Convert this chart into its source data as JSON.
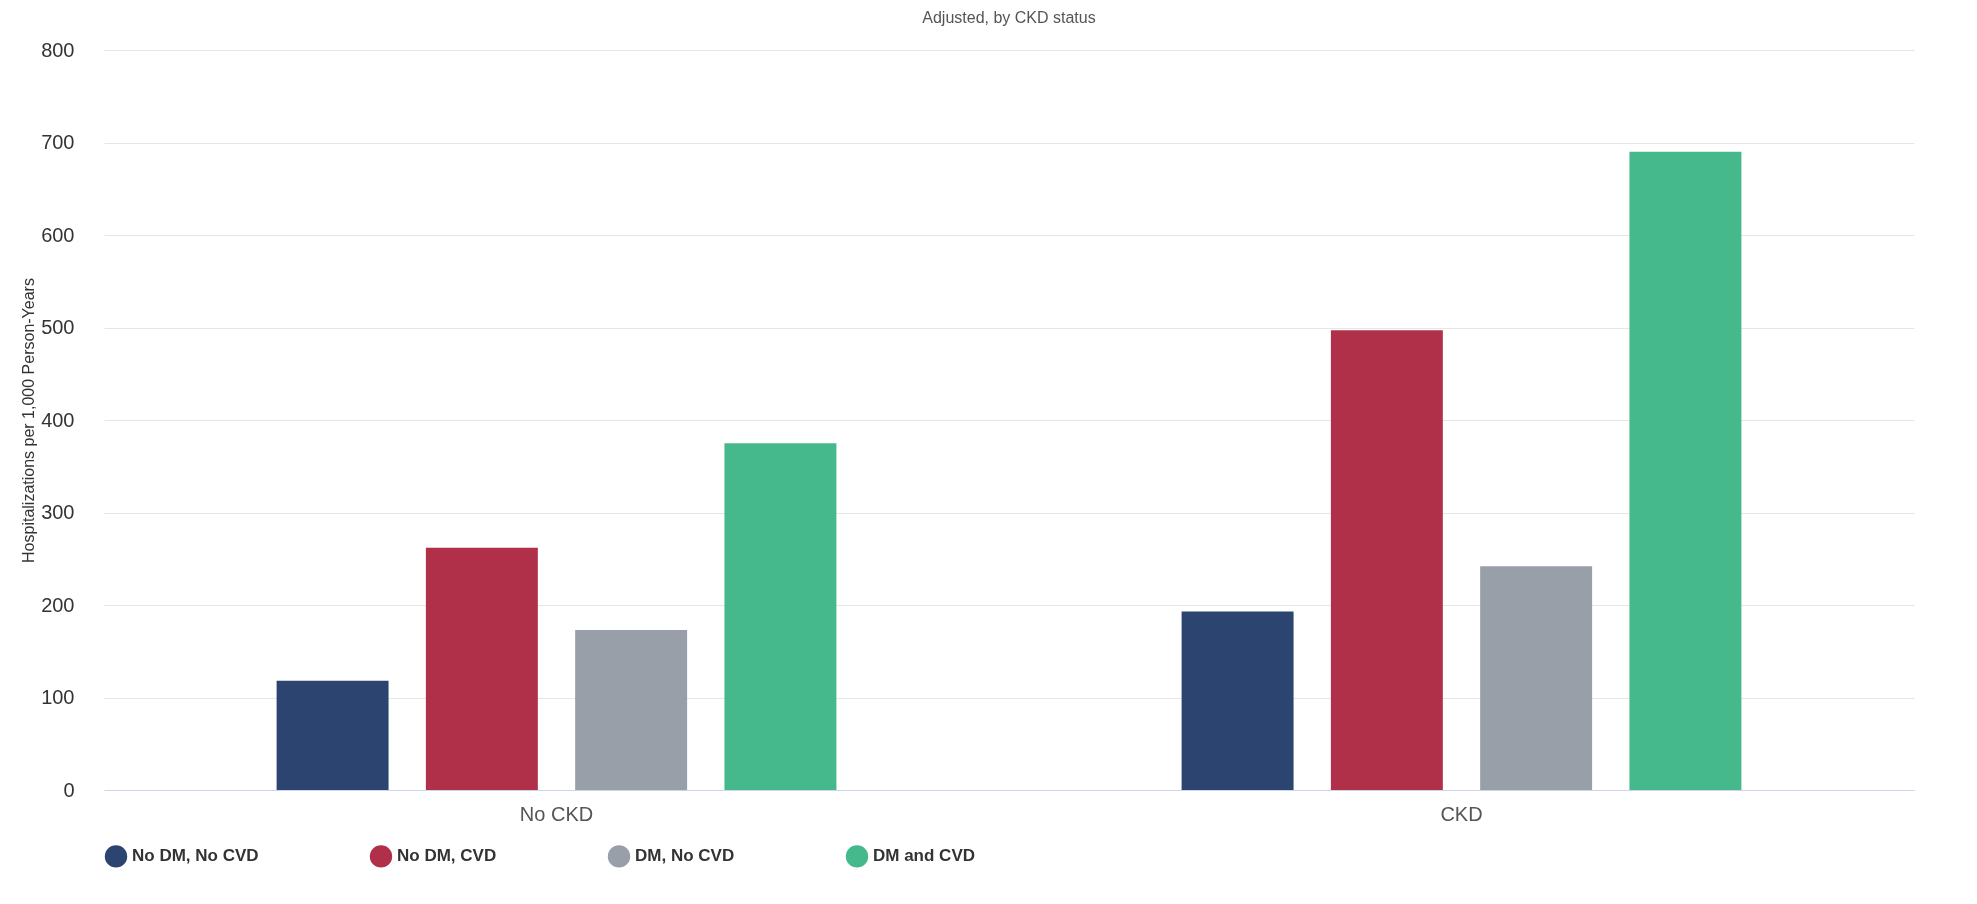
{
  "chart_data": {
    "type": "bar",
    "title": "Adjusted, by CKD status",
    "ylabel": "Hospitalizations per 1,000 Person-Years",
    "categories": [
      "No CKD",
      "CKD"
    ],
    "series": [
      {
        "name": "No DM, No CVD",
        "color": "#2b4470",
        "values": [
          118,
          193
        ]
      },
      {
        "name": "No DM, CVD",
        "color": "#b0304a",
        "values": [
          262,
          497
        ]
      },
      {
        "name": "DM, No CVD",
        "color": "#989fa8",
        "values": [
          173,
          242
        ]
      },
      {
        "name": "DM and CVD",
        "color": "#46b98c",
        "values": [
          375,
          690
        ]
      }
    ],
    "ylim": [
      0,
      800
    ],
    "yticks": [
      0,
      100,
      200,
      300,
      400,
      500,
      600,
      700,
      800
    ],
    "grid": "y",
    "legend": "bottom"
  }
}
